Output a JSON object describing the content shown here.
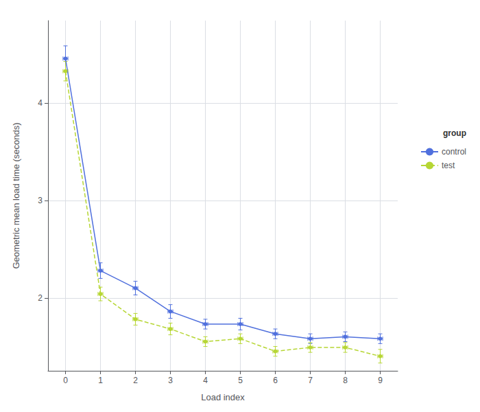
{
  "chart_data": {
    "type": "line",
    "xlabel": "Load index",
    "ylabel": "Geometric mean load time (seconds)",
    "legend_title": "group",
    "legend": "right",
    "grid": true,
    "marker": "circle",
    "xlim": [
      -0.5,
      9.5
    ],
    "xticks": [
      0,
      1,
      2,
      3,
      4,
      5,
      6,
      7,
      8,
      9
    ],
    "ylim": [
      1.25,
      4.85
    ],
    "yticks": [
      2,
      3,
      4
    ],
    "series": [
      {
        "name": "control",
        "line_style": "solid",
        "x": [
          0,
          1,
          2,
          3,
          4,
          5,
          6,
          7,
          8,
          9
        ],
        "values": [
          4.46,
          2.28,
          2.1,
          1.86,
          1.73,
          1.73,
          1.63,
          1.58,
          1.6,
          1.58
        ],
        "yerr_lo": [
          0.13,
          0.08,
          0.07,
          0.07,
          0.05,
          0.06,
          0.05,
          0.05,
          0.05,
          0.05
        ],
        "yerr_hi": [
          0.13,
          0.08,
          0.07,
          0.07,
          0.05,
          0.06,
          0.05,
          0.05,
          0.05,
          0.05
        ],
        "xerr": [
          0.07,
          0.07,
          0.07,
          0.07,
          0.07,
          0.07,
          0.07,
          0.07,
          0.07,
          0.07
        ]
      },
      {
        "name": "test",
        "line_style": "dashed",
        "x": [
          0,
          1,
          2,
          3,
          4,
          5,
          6,
          7,
          8,
          9
        ],
        "values": [
          4.33,
          2.04,
          1.78,
          1.68,
          1.55,
          1.58,
          1.45,
          1.49,
          1.49,
          1.4
        ],
        "yerr_lo": [
          0.1,
          0.07,
          0.06,
          0.06,
          0.05,
          0.05,
          0.05,
          0.05,
          0.05,
          0.07
        ],
        "yerr_hi": [
          0.1,
          0.07,
          0.06,
          0.06,
          0.05,
          0.05,
          0.05,
          0.05,
          0.05,
          0.07
        ],
        "xerr": [
          0.07,
          0.07,
          0.07,
          0.07,
          0.07,
          0.07,
          0.07,
          0.07,
          0.07,
          0.07
        ]
      }
    ]
  }
}
